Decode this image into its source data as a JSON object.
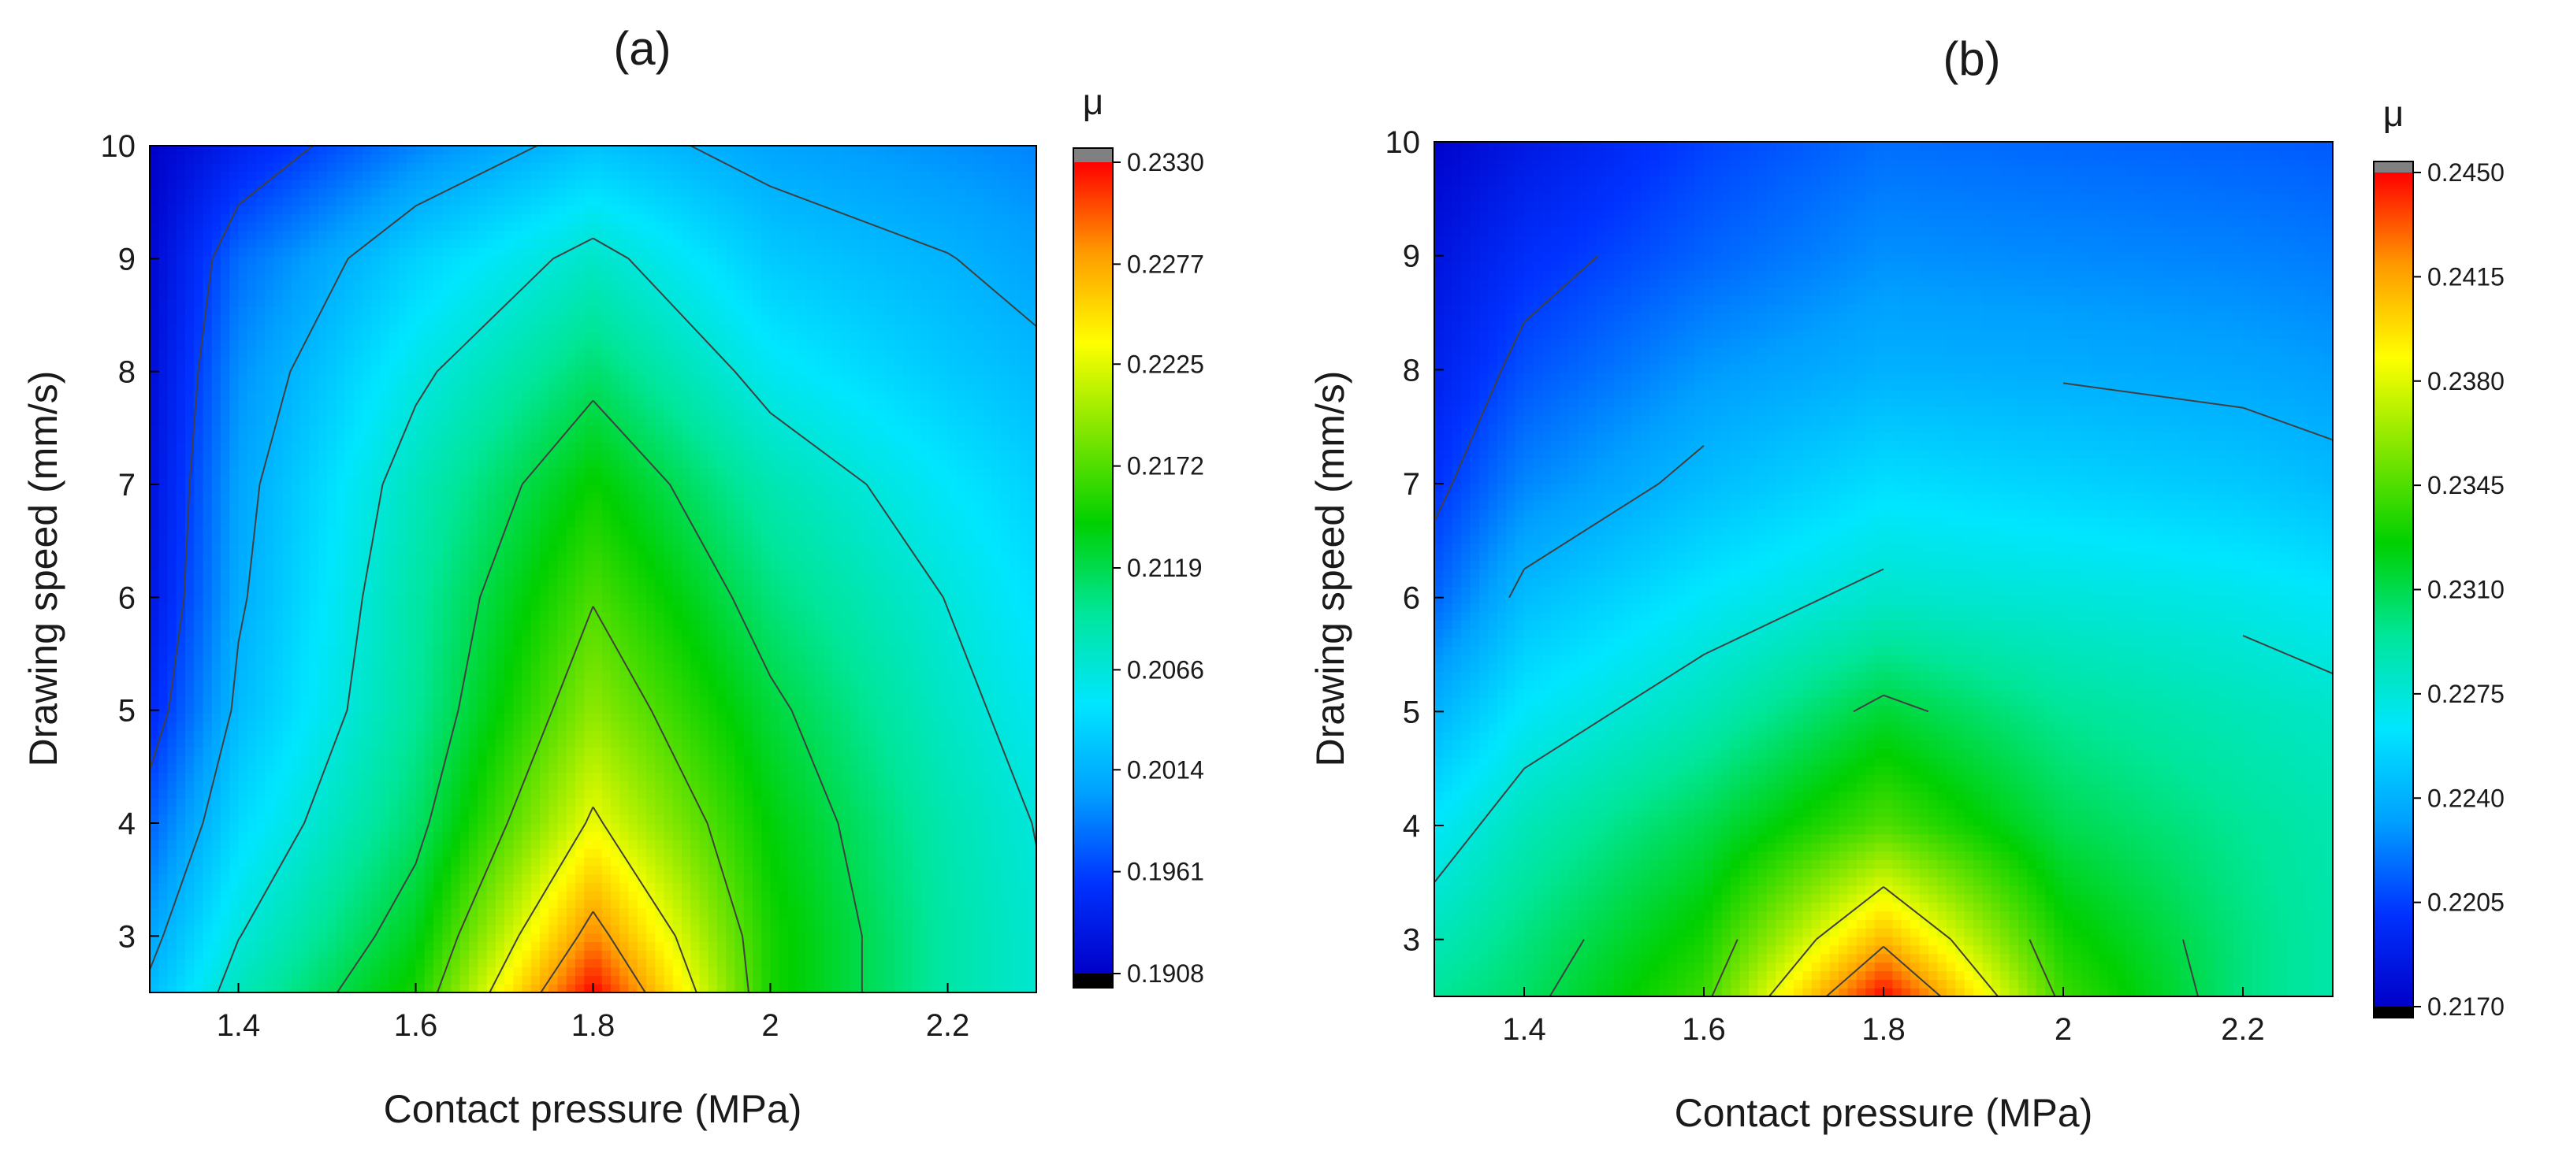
{
  "figure": {
    "colors": {
      "stops": [
        "#0000c8",
        "#0032ff",
        "#00a0ff",
        "#00e6ff",
        "#00e69a",
        "#00d000",
        "#80e600",
        "#ffff00",
        "#ff9a00",
        "#ff0000"
      ],
      "over": "#808080",
      "under": "#000000",
      "contour": "#404040"
    }
  },
  "chart_data": [
    {
      "type": "heatmap",
      "panel_label": "(a)",
      "title": "(a)",
      "xlabel": "Contact pressure (MPa)",
      "ylabel": "Drawing speed (mm/s)",
      "colorbar_label": "μ",
      "xlim": [
        1.3,
        2.3
      ],
      "ylim": [
        2.5,
        10
      ],
      "xticks": [
        "1.4",
        "1.6",
        "1.8",
        "2",
        "2.2"
      ],
      "yticks": [
        "3",
        "4",
        "5",
        "6",
        "7",
        "8",
        "9",
        "10"
      ],
      "colorbar_ticks": [
        "0.2330",
        "0.2277",
        "0.2225",
        "0.2172",
        "0.2119",
        "0.2066",
        "0.2014",
        "0.1961",
        "0.1908"
      ],
      "zlim": [
        0.1908,
        0.233
      ],
      "x": [
        1.3,
        1.4,
        1.6,
        1.8,
        2.0,
        2.2,
        2.3
      ],
      "y": [
        2.5,
        3,
        4,
        5,
        6,
        7,
        8,
        9,
        10
      ],
      "z": [
        [
          0.202,
          0.208,
          0.215,
          0.233,
          0.215,
          0.209,
          0.207
        ],
        [
          0.2005,
          0.2065,
          0.2135,
          0.229,
          0.215,
          0.209,
          0.207
        ],
        [
          0.1975,
          0.204,
          0.211,
          0.223,
          0.214,
          0.2085,
          0.2065
        ],
        [
          0.1945,
          0.202,
          0.2095,
          0.2195,
          0.2125,
          0.2075,
          0.2055
        ],
        [
          0.193,
          0.201,
          0.209,
          0.217,
          0.2105,
          0.2065,
          0.2045
        ],
        [
          0.1925,
          0.2005,
          0.208,
          0.2145,
          0.2085,
          0.205,
          0.2035
        ],
        [
          0.192,
          0.1995,
          0.206,
          0.211,
          0.2055,
          0.203,
          0.202
        ],
        [
          0.1915,
          0.198,
          0.2035,
          0.2075,
          0.203,
          0.2015,
          0.2005
        ],
        [
          0.1908,
          0.194,
          0.199,
          0.2025,
          0.2005,
          0.1995,
          0.199
        ]
      ],
      "contour_levels": [
        0.1961,
        0.2014,
        0.2066,
        0.2119,
        0.2172,
        0.2225,
        0.2277
      ]
    },
    {
      "type": "heatmap",
      "panel_label": "(b)",
      "title": "(b)",
      "xlabel": "Contact pressure (MPa)",
      "ylabel": "Drawing speed (mm/s)",
      "colorbar_label": "μ",
      "xlim": [
        1.3,
        2.3
      ],
      "ylim": [
        2.5,
        10
      ],
      "xticks": [
        "1.4",
        "1.6",
        "1.8",
        "2",
        "2.2"
      ],
      "yticks": [
        "3",
        "4",
        "5",
        "6",
        "7",
        "8",
        "9",
        "10"
      ],
      "colorbar_ticks": [
        "0.2450",
        "0.2415",
        "0.2380",
        "0.2345",
        "0.2310",
        "0.2275",
        "0.2240",
        "0.2205",
        "0.2170"
      ],
      "zlim": [
        0.217,
        0.245
      ],
      "x": [
        1.3,
        1.4,
        1.6,
        1.8,
        2.0,
        2.2,
        2.3
      ],
      "y": [
        2.5,
        3,
        4,
        5,
        6,
        7,
        8,
        9,
        10
      ],
      "z": [
        [
          0.2295,
          0.2305,
          0.234,
          0.245,
          0.234,
          0.23,
          0.229
        ],
        [
          0.2285,
          0.23,
          0.233,
          0.241,
          0.233,
          0.23,
          0.229
        ],
        [
          0.2265,
          0.2285,
          0.231,
          0.2345,
          0.231,
          0.2295,
          0.2288
        ],
        [
          0.224,
          0.2265,
          0.2285,
          0.2315,
          0.2295,
          0.2285,
          0.228
        ],
        [
          0.2215,
          0.2245,
          0.2265,
          0.228,
          0.2275,
          0.227,
          0.2265
        ],
        [
          0.22,
          0.2225,
          0.2245,
          0.226,
          0.2255,
          0.225,
          0.2245
        ],
        [
          0.219,
          0.221,
          0.223,
          0.224,
          0.2238,
          0.2235,
          0.2232
        ],
        [
          0.2182,
          0.2198,
          0.2215,
          0.2228,
          0.2226,
          0.2224,
          0.2222
        ],
        [
          0.2172,
          0.2185,
          0.2205,
          0.2218,
          0.2216,
          0.2214,
          0.2212
        ]
      ],
      "contour_levels": [
        0.2205,
        0.224,
        0.2275,
        0.231,
        0.2345,
        0.238,
        0.2415
      ]
    }
  ]
}
